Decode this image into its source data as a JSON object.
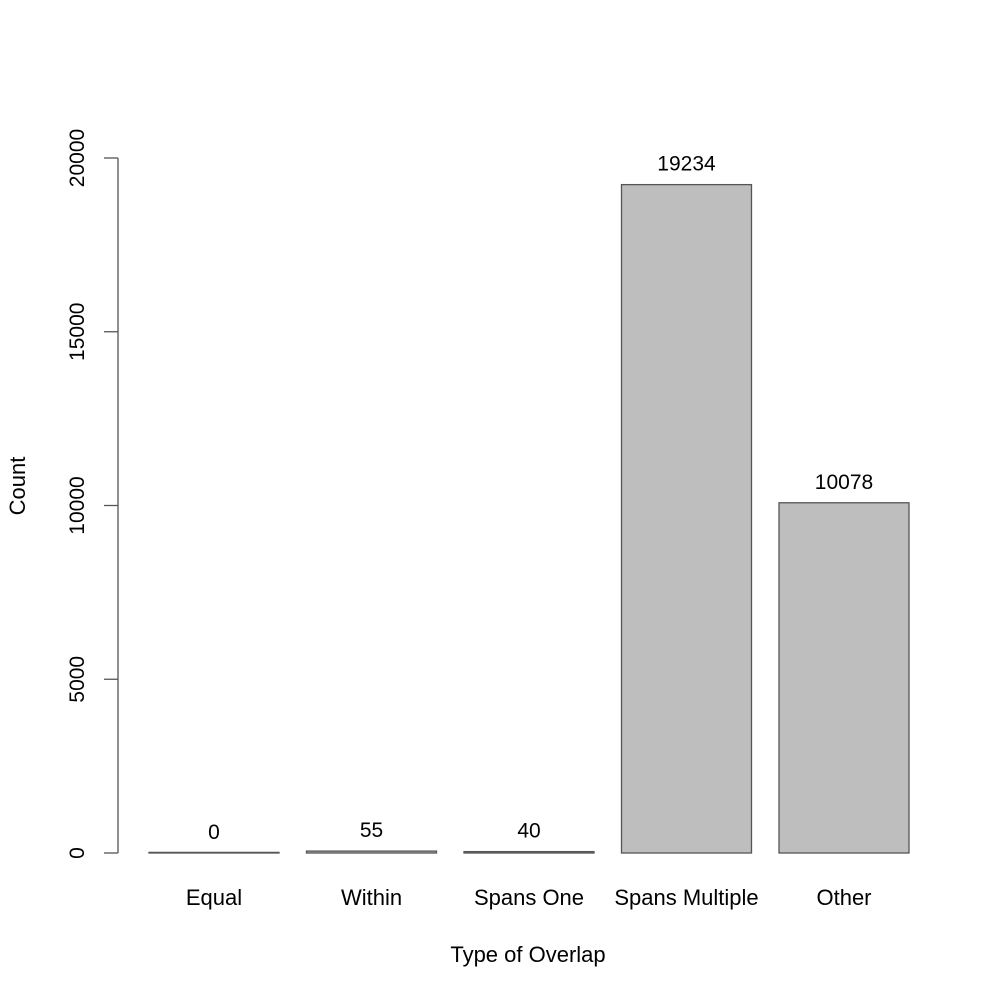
{
  "chart_data": {
    "type": "bar",
    "categories": [
      "Equal",
      "Within",
      "Spans One",
      "Spans Multiple",
      "Other"
    ],
    "values": [
      0,
      55,
      40,
      19234,
      10078
    ],
    "data_labels": [
      "0",
      "55",
      "40",
      "19234",
      "10078"
    ],
    "xlabel": "Type of Overlap",
    "ylabel": "Count",
    "ylim": [
      0,
      20000
    ],
    "y_ticks": [
      0,
      5000,
      10000,
      15000,
      20000
    ],
    "y_tick_labels": [
      "0",
      "5000",
      "10000",
      "15000",
      "20000"
    ],
    "grid": false,
    "bar_color": "#bebebe",
    "bar_border_color": "#555555"
  }
}
